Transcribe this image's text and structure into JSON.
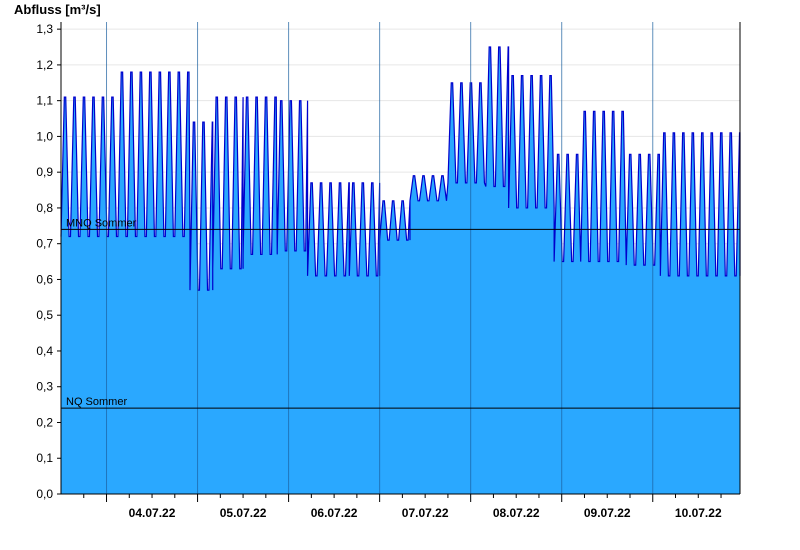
{
  "chart_data": {
    "type": "area",
    "title": "",
    "ylabel": "Abfluss [m³/s]",
    "xlabel": "",
    "x_range": [
      "2022-07-03T12:00",
      "2022-07-10T23:00"
    ],
    "ylim": [
      0.0,
      1.32
    ],
    "yticks": [
      "0,0",
      "0,1",
      "0,2",
      "0,3",
      "0,4",
      "0,5",
      "0,6",
      "0,7",
      "0,8",
      "0,9",
      "1,0",
      "1,1",
      "1,2",
      "1,3"
    ],
    "ytick_values": [
      0.0,
      0.1,
      0.2,
      0.3,
      0.4,
      0.5,
      0.6,
      0.7,
      0.8,
      0.9,
      1.0,
      1.1,
      1.2,
      1.3
    ],
    "grid": "horizontal lines, midnight vertical lines",
    "day_boundaries": [
      "2022-07-04T00:00",
      "2022-07-05T00:00",
      "2022-07-06T00:00",
      "2022-07-07T00:00",
      "2022-07-08T00:00",
      "2022-07-09T00:00",
      "2022-07-10T00:00"
    ],
    "xtick_labels": [
      {
        "date": "2022-07-04T12:00",
        "label": "04.07.22"
      },
      {
        "date": "2022-07-05T12:00",
        "label": "05.07.22"
      },
      {
        "date": "2022-07-06T12:00",
        "label": "06.07.22"
      },
      {
        "date": "2022-07-07T12:00",
        "label": "07.07.22"
      },
      {
        "date": "2022-07-08T12:00",
        "label": "08.07.22"
      },
      {
        "date": "2022-07-09T12:00",
        "label": "09.07.22"
      },
      {
        "date": "2022-07-10T12:00",
        "label": "10.07.22"
      }
    ],
    "reference_lines": [
      {
        "label": "MNQ Sommer",
        "value": 0.74
      },
      {
        "label": "NQ Sommer",
        "value": 0.24
      }
    ],
    "colors": {
      "fill": "#2aa8ff",
      "line": "#0000cc",
      "axis": "#000000",
      "grid": "#e6e6e6"
    },
    "series": [
      {
        "description": "Oscillating discharge (approx. hourly pumping cycle). Each pulse alternates between the high and low value of its segment.",
        "pulse_period_hours": 2.5,
        "segments": [
          {
            "start": "2022-07-03T12:00",
            "end": "2022-07-04T03:00",
            "high": 1.11,
            "low": 0.72
          },
          {
            "start": "2022-07-04T03:00",
            "end": "2022-07-04T22:00",
            "high": 1.18,
            "low": 0.72
          },
          {
            "start": "2022-07-04T22:00",
            "end": "2022-07-05T04:00",
            "high": 1.04,
            "low": 0.57
          },
          {
            "start": "2022-07-05T04:00",
            "end": "2022-07-05T12:00",
            "high": 1.11,
            "low": 0.63
          },
          {
            "start": "2022-07-05T12:00",
            "end": "2022-07-05T21:00",
            "high": 1.11,
            "low": 0.67
          },
          {
            "start": "2022-07-05T21:00",
            "end": "2022-07-06T05:00",
            "high": 1.1,
            "low": 0.68
          },
          {
            "start": "2022-07-06T05:00",
            "end": "2022-07-06T16:00",
            "high": 0.87,
            "low": 0.61
          },
          {
            "start": "2022-07-06T16:00",
            "end": "2022-07-07T00:00",
            "high": 0.87,
            "low": 0.61
          },
          {
            "start": "2022-07-07T00:00",
            "end": "2022-07-07T08:00",
            "high": 0.82,
            "low": 0.71
          },
          {
            "start": "2022-07-07T08:00",
            "end": "2022-07-07T18:00",
            "high": 0.89,
            "low": 0.82
          },
          {
            "start": "2022-07-07T18:00",
            "end": "2022-07-08T04:00",
            "high": 1.15,
            "low": 0.87
          },
          {
            "start": "2022-07-08T04:00",
            "end": "2022-07-08T10:00",
            "high": 1.25,
            "low": 0.86
          },
          {
            "start": "2022-07-08T10:00",
            "end": "2022-07-08T22:00",
            "high": 1.17,
            "low": 0.8
          },
          {
            "start": "2022-07-08T22:00",
            "end": "2022-07-09T05:00",
            "high": 0.95,
            "low": 0.65
          },
          {
            "start": "2022-07-09T05:00",
            "end": "2022-07-09T17:00",
            "high": 1.07,
            "low": 0.65
          },
          {
            "start": "2022-07-09T17:00",
            "end": "2022-07-10T02:00",
            "high": 0.95,
            "low": 0.64
          },
          {
            "start": "2022-07-10T02:00",
            "end": "2022-07-10T23:00",
            "high": 1.01,
            "low": 0.61
          }
        ]
      }
    ]
  }
}
